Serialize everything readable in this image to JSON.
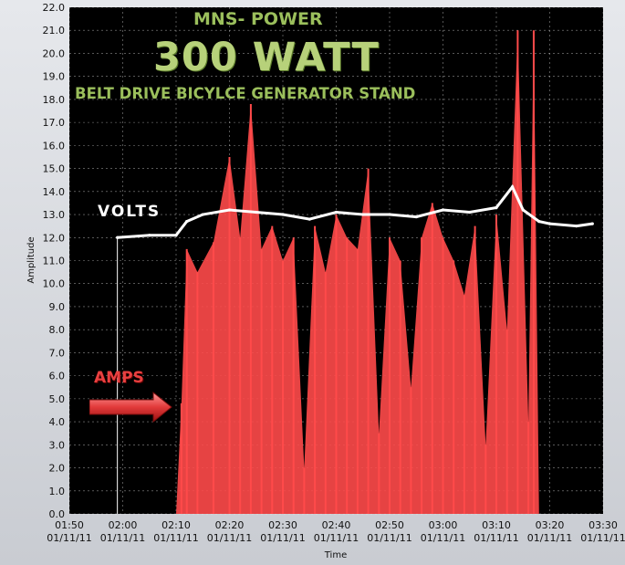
{
  "chart_data": {
    "type": "line",
    "title_lines": [
      "MNS- POWER",
      "300 WATT",
      "BELT DRIVE BICYLCE GENERATOR STAND"
    ],
    "xlabel": "Time",
    "ylabel": "Amplitude",
    "ylim": [
      0,
      22
    ],
    "y_ticks": [
      "0.0",
      "1.0",
      "2.0",
      "3.0",
      "4.0",
      "5.0",
      "6.0",
      "7.0",
      "8.0",
      "9.0",
      "10.0",
      "11.0",
      "12.0",
      "13.0",
      "14.0",
      "15.0",
      "16.0",
      "17.0",
      "18.0",
      "19.0",
      "20.0",
      "21.0",
      "22.0"
    ],
    "x_ticks": [
      {
        "time": "01:50",
        "date": "01/11/11"
      },
      {
        "time": "02:00",
        "date": "01/11/11"
      },
      {
        "time": "02:10",
        "date": "01/11/11"
      },
      {
        "time": "02:20",
        "date": "01/11/11"
      },
      {
        "time": "02:30",
        "date": "01/11/11"
      },
      {
        "time": "02:40",
        "date": "01/11/11"
      },
      {
        "time": "02:50",
        "date": "01/11/11"
      },
      {
        "time": "03:00",
        "date": "01/11/11"
      },
      {
        "time": "03:10",
        "date": "01/11/11"
      },
      {
        "time": "03:20",
        "date": "01/11/11"
      },
      {
        "time": "03:30",
        "date": "01/11/11"
      }
    ],
    "grid": true,
    "series": [
      {
        "name": "VOLTS",
        "color": "#ffffff",
        "x": [
          "01:59",
          "02:05",
          "02:10",
          "02:12",
          "02:15",
          "02:20",
          "02:25",
          "02:30",
          "02:35",
          "02:40",
          "02:45",
          "02:50",
          "02:55",
          "03:00",
          "03:05",
          "03:10",
          "03:13",
          "03:15",
          "03:18",
          "03:20",
          "03:25",
          "03:28"
        ],
        "values": [
          12.0,
          12.1,
          12.1,
          12.7,
          13.0,
          13.2,
          13.1,
          13.0,
          12.8,
          13.1,
          13.0,
          13.0,
          12.9,
          13.2,
          13.1,
          13.3,
          14.2,
          13.2,
          12.7,
          12.6,
          12.5,
          12.6
        ]
      },
      {
        "name": "AMPS",
        "color": "#ff4a4a",
        "x": [
          "02:10",
          "02:11",
          "02:12",
          "02:14",
          "02:17",
          "02:20",
          "02:22",
          "02:24",
          "02:26",
          "02:28",
          "02:30",
          "02:32",
          "02:34",
          "02:36",
          "02:38",
          "02:40",
          "02:42",
          "02:44",
          "02:46",
          "02:48",
          "02:50",
          "02:52",
          "02:54",
          "02:56",
          "02:58",
          "03:00",
          "03:02",
          "03:04",
          "03:06",
          "03:08",
          "03:10",
          "03:12",
          "03:14",
          "03:16",
          "03:17",
          "03:18",
          "03:20",
          "03:28"
        ],
        "values": [
          0.0,
          4.8,
          11.5,
          10.5,
          11.8,
          15.5,
          12.0,
          17.8,
          11.5,
          12.5,
          11.0,
          12.0,
          2.0,
          12.5,
          10.5,
          13.0,
          12.0,
          11.5,
          15.0,
          3.5,
          12.0,
          11.0,
          5.5,
          12.0,
          13.5,
          12.0,
          11.0,
          9.5,
          12.5,
          3.0,
          13.0,
          8.0,
          21.0,
          4.0,
          21.0,
          0.0,
          0.0,
          0.0
        ]
      }
    ]
  },
  "labels": {
    "volts": "VOLTS",
    "amps": "AMPS"
  },
  "colors": {
    "plot_bg": "#000000",
    "grid": "#ffffff",
    "volts": "#ffffff",
    "amps": "#ff4a4a",
    "title_green": "#9bbf5c"
  }
}
